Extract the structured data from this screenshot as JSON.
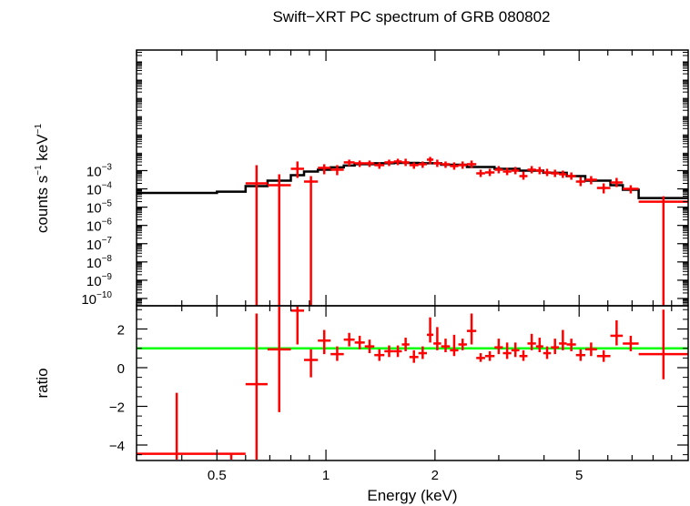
{
  "chart_data": [
    {
      "panel": "spectrum",
      "type": "scatter",
      "title": "Swift−XRT PC spectrum of GRB 080802",
      "xlabel": "Energy (keV)",
      "ylabel_parts": [
        "counts s",
        "−1",
        " keV",
        "−1"
      ],
      "xscale": "log",
      "yscale": "log",
      "xlim": [
        0.3,
        10
      ],
      "ylim_log10": [
        -10.4,
        3.6
      ],
      "y_ticks": [
        {
          "exp": -3,
          "label": "10",
          "sup": "−3"
        },
        {
          "exp": -4,
          "label": "10",
          "sup": "−4"
        },
        {
          "exp": -5,
          "label": "10",
          "sup": "−5"
        },
        {
          "exp": -6,
          "label": "10",
          "sup": "−6"
        },
        {
          "exp": -7,
          "label": "10",
          "sup": "−7"
        },
        {
          "exp": -8,
          "label": "10",
          "sup": "−8"
        },
        {
          "exp": -9,
          "label": "10",
          "sup": "−9"
        },
        {
          "exp": -10,
          "label": "10",
          "sup": "−10"
        }
      ],
      "series": [
        {
          "name": "data",
          "color": "#ff0000",
          "points": [
            {
              "x1": 0.6,
              "x2": 0.69,
              "y": -3.7,
              "ylo": -10.4,
              "yhi": -2.7
            },
            {
              "x1": 0.69,
              "x2": 0.8,
              "y": -3.8,
              "ylo": -10.4,
              "yhi": -3.2
            },
            {
              "x1": 0.8,
              "x2": 0.87,
              "y": -2.9,
              "ylo": -3.4,
              "yhi": -2.5
            },
            {
              "x1": 0.87,
              "x2": 0.95,
              "y": -3.6,
              "ylo": -10.4,
              "yhi": -3.3
            },
            {
              "x1": 0.95,
              "x2": 1.03,
              "y": -2.85,
              "ylo": -3.2,
              "yhi": -2.65
            },
            {
              "x1": 1.03,
              "x2": 1.12,
              "y": -2.95,
              "ylo": -3.25,
              "yhi": -2.7
            },
            {
              "x1": 1.12,
              "x2": 1.2,
              "y": -2.55,
              "ylo": -2.75,
              "yhi": -2.4
            },
            {
              "x1": 1.2,
              "x2": 1.28,
              "y": -2.6,
              "ylo": -2.8,
              "yhi": -2.45
            },
            {
              "x1": 1.28,
              "x2": 1.36,
              "y": -2.6,
              "ylo": -2.8,
              "yhi": -2.45
            },
            {
              "x1": 1.36,
              "x2": 1.45,
              "y": -2.7,
              "ylo": -2.9,
              "yhi": -2.55
            },
            {
              "x1": 1.45,
              "x2": 1.54,
              "y": -2.55,
              "ylo": -2.75,
              "yhi": -2.4
            },
            {
              "x1": 1.54,
              "x2": 1.62,
              "y": -2.5,
              "ylo": -2.7,
              "yhi": -2.35
            },
            {
              "x1": 1.62,
              "x2": 1.7,
              "y": -2.55,
              "ylo": -2.75,
              "yhi": -2.35
            },
            {
              "x1": 1.7,
              "x2": 1.8,
              "y": -2.7,
              "ylo": -2.9,
              "yhi": -2.55
            },
            {
              "x1": 1.8,
              "x2": 1.9,
              "y": -2.65,
              "ylo": -2.85,
              "yhi": -2.5
            },
            {
              "x1": 1.9,
              "x2": 1.98,
              "y": -2.4,
              "ylo": -2.65,
              "yhi": -2.25
            },
            {
              "x1": 1.98,
              "x2": 2.08,
              "y": -2.6,
              "ylo": -2.8,
              "yhi": -2.4
            },
            {
              "x1": 2.08,
              "x2": 2.2,
              "y": -2.65,
              "ylo": -2.85,
              "yhi": -2.5
            },
            {
              "x1": 2.2,
              "x2": 2.32,
              "y": -2.75,
              "ylo": -2.95,
              "yhi": -2.55
            },
            {
              "x1": 2.32,
              "x2": 2.45,
              "y": -2.7,
              "ylo": -2.9,
              "yhi": -2.5
            },
            {
              "x1": 2.45,
              "x2": 2.6,
              "y": -2.65,
              "ylo": -2.85,
              "yhi": -2.45
            },
            {
              "x1": 2.6,
              "x2": 2.75,
              "y": -3.15,
              "ylo": -3.35,
              "yhi": -2.95
            },
            {
              "x1": 2.75,
              "x2": 2.92,
              "y": -3.1,
              "ylo": -3.3,
              "yhi": -2.9
            },
            {
              "x1": 2.92,
              "x2": 3.08,
              "y": -2.95,
              "ylo": -3.15,
              "yhi": -2.75
            },
            {
              "x1": 3.08,
              "x2": 3.25,
              "y": -3.05,
              "ylo": -3.25,
              "yhi": -2.85
            },
            {
              "x1": 3.25,
              "x2": 3.42,
              "y": -3.0,
              "ylo": -3.2,
              "yhi": -2.8
            },
            {
              "x1": 3.42,
              "x2": 3.6,
              "y": -3.3,
              "ylo": -3.5,
              "yhi": -3.05
            },
            {
              "x1": 3.6,
              "x2": 3.8,
              "y": -2.95,
              "ylo": -3.15,
              "yhi": -2.75
            },
            {
              "x1": 3.8,
              "x2": 3.98,
              "y": -3.0,
              "ylo": -3.2,
              "yhi": -2.8
            },
            {
              "x1": 3.98,
              "x2": 4.18,
              "y": -3.1,
              "ylo": -3.3,
              "yhi": -2.9
            },
            {
              "x1": 4.18,
              "x2": 4.4,
              "y": -3.15,
              "ylo": -3.35,
              "yhi": -2.95
            },
            {
              "x1": 4.4,
              "x2": 4.62,
              "y": -3.2,
              "ylo": -3.4,
              "yhi": -3.0
            },
            {
              "x1": 4.62,
              "x2": 4.9,
              "y": -3.3,
              "ylo": -3.5,
              "yhi": -3.1
            },
            {
              "x1": 4.9,
              "x2": 5.2,
              "y": -3.6,
              "ylo": -3.85,
              "yhi": -3.35
            },
            {
              "x1": 5.2,
              "x2": 5.6,
              "y": -3.5,
              "ylo": -3.75,
              "yhi": -3.3
            },
            {
              "x1": 5.6,
              "x2": 6.1,
              "y": -3.95,
              "ylo": -4.25,
              "yhi": -3.7
            },
            {
              "x1": 6.1,
              "x2": 6.6,
              "y": -3.65,
              "ylo": -3.9,
              "yhi": -3.4
            },
            {
              "x1": 6.6,
              "x2": 7.3,
              "y": -4.0,
              "ylo": -4.25,
              "yhi": -3.8
            },
            {
              "x1": 7.3,
              "x2": 10.0,
              "y": -4.7,
              "ylo": -10.4,
              "yhi": -4.4
            }
          ]
        },
        {
          "name": "model",
          "color": "#000000",
          "steps": [
            {
              "x1": 0.3,
              "x2": 0.5,
              "y": -4.22
            },
            {
              "x1": 0.5,
              "x2": 0.6,
              "y": -4.15
            },
            {
              "x1": 0.6,
              "x2": 0.69,
              "y": -3.85
            },
            {
              "x1": 0.69,
              "x2": 0.8,
              "y": -3.55
            },
            {
              "x1": 0.8,
              "x2": 0.87,
              "y": -3.25
            },
            {
              "x1": 0.87,
              "x2": 0.95,
              "y": -3.05
            },
            {
              "x1": 0.95,
              "x2": 1.03,
              "y": -2.95
            },
            {
              "x1": 1.03,
              "x2": 1.12,
              "y": -2.82
            },
            {
              "x1": 1.12,
              "x2": 1.2,
              "y": -2.72
            },
            {
              "x1": 1.2,
              "x2": 1.36,
              "y": -2.65
            },
            {
              "x1": 1.36,
              "x2": 1.54,
              "y": -2.6
            },
            {
              "x1": 1.54,
              "x2": 1.8,
              "y": -2.58
            },
            {
              "x1": 1.8,
              "x2": 2.08,
              "y": -2.6
            },
            {
              "x1": 2.08,
              "x2": 2.45,
              "y": -2.68
            },
            {
              "x1": 2.45,
              "x2": 2.92,
              "y": -2.8
            },
            {
              "x1": 2.92,
              "x2": 3.42,
              "y": -2.9
            },
            {
              "x1": 3.42,
              "x2": 3.98,
              "y": -3.0
            },
            {
              "x1": 3.98,
              "x2": 4.62,
              "y": -3.12
            },
            {
              "x1": 4.62,
              "x2": 5.2,
              "y": -3.3
            },
            {
              "x1": 5.2,
              "x2": 6.1,
              "y": -3.55
            },
            {
              "x1": 6.1,
              "x2": 6.6,
              "y": -3.8
            },
            {
              "x1": 6.6,
              "x2": 7.3,
              "y": -4.05
            },
            {
              "x1": 7.3,
              "x2": 10.0,
              "y": -4.5
            }
          ]
        }
      ]
    },
    {
      "panel": "ratio",
      "type": "scatter",
      "xlabel": "Energy (keV)",
      "ylabel": "ratio",
      "xscale": "log",
      "xlim": [
        0.3,
        10
      ],
      "ylim": [
        -4.8,
        3.2
      ],
      "x_ticks": [
        {
          "value": 0.5,
          "label": "0.5"
        },
        {
          "value": 1,
          "label": "1"
        },
        {
          "value": 2,
          "label": "2"
        },
        {
          "value": 5,
          "label": "5"
        }
      ],
      "y_ticks": [
        {
          "value": 2,
          "label": "2"
        },
        {
          "value": 0,
          "label": "0"
        },
        {
          "value": -2,
          "label": "−2"
        },
        {
          "value": -4,
          "label": "−4"
        }
      ],
      "reference_line": {
        "value": 1,
        "color": "#00ff00"
      },
      "series": [
        {
          "name": "ratio",
          "color": "#ff0000",
          "points": [
            {
              "x1": 0.3,
              "x2": 0.5,
              "y": -4.45,
              "ylo": -4.8,
              "yhi": -1.3
            },
            {
              "x1": 0.5,
              "x2": 0.6,
              "y": -4.45,
              "ylo": -4.8,
              "yhi": -4.45
            },
            {
              "x1": 0.6,
              "x2": 0.69,
              "y": -0.85,
              "ylo": -4.8,
              "yhi": 2.8
            },
            {
              "x1": 0.69,
              "x2": 0.8,
              "y": 0.95,
              "ylo": -2.3,
              "yhi": 3.2
            },
            {
              "x1": 0.8,
              "x2": 0.87,
              "y": 2.95,
              "ylo": 1.2,
              "yhi": 3.2
            },
            {
              "x1": 0.87,
              "x2": 0.95,
              "y": 0.4,
              "ylo": -0.5,
              "yhi": 0.95
            },
            {
              "x1": 0.95,
              "x2": 1.03,
              "y": 1.4,
              "ylo": 0.7,
              "yhi": 1.95
            },
            {
              "x1": 1.03,
              "x2": 1.12,
              "y": 0.7,
              "ylo": 0.35,
              "yhi": 1.1
            },
            {
              "x1": 1.12,
              "x2": 1.2,
              "y": 1.45,
              "ylo": 1.1,
              "yhi": 1.8
            },
            {
              "x1": 1.2,
              "x2": 1.28,
              "y": 1.3,
              "ylo": 0.95,
              "yhi": 1.65
            },
            {
              "x1": 1.28,
              "x2": 1.36,
              "y": 1.1,
              "ylo": 0.75,
              "yhi": 1.45
            },
            {
              "x1": 1.36,
              "x2": 1.45,
              "y": 0.65,
              "ylo": 0.35,
              "yhi": 0.95
            },
            {
              "x1": 1.45,
              "x2": 1.54,
              "y": 0.85,
              "ylo": 0.55,
              "yhi": 1.15
            },
            {
              "x1": 1.54,
              "x2": 1.62,
              "y": 0.85,
              "ylo": 0.55,
              "yhi": 1.15
            },
            {
              "x1": 1.62,
              "x2": 1.7,
              "y": 1.2,
              "ylo": 0.85,
              "yhi": 1.55
            },
            {
              "x1": 1.7,
              "x2": 1.8,
              "y": 0.55,
              "ylo": 0.25,
              "yhi": 0.9
            },
            {
              "x1": 1.8,
              "x2": 1.9,
              "y": 0.75,
              "ylo": 0.45,
              "yhi": 1.1
            },
            {
              "x1": 1.9,
              "x2": 1.98,
              "y": 1.7,
              "ylo": 1.3,
              "yhi": 2.6
            },
            {
              "x1": 1.98,
              "x2": 2.08,
              "y": 1.25,
              "ylo": 0.9,
              "yhi": 2.1
            },
            {
              "x1": 2.08,
              "x2": 2.2,
              "y": 1.1,
              "ylo": 0.8,
              "yhi": 1.5
            },
            {
              "x1": 2.2,
              "x2": 2.32,
              "y": 0.9,
              "ylo": 0.6,
              "yhi": 1.7
            },
            {
              "x1": 2.32,
              "x2": 2.45,
              "y": 1.2,
              "ylo": 0.9,
              "yhi": 1.5
            },
            {
              "x1": 2.45,
              "x2": 2.6,
              "y": 1.9,
              "ylo": 1.2,
              "yhi": 2.8
            },
            {
              "x1": 2.6,
              "x2": 2.75,
              "y": 0.5,
              "ylo": 0.3,
              "yhi": 0.75
            },
            {
              "x1": 2.75,
              "x2": 2.92,
              "y": 0.6,
              "ylo": 0.35,
              "yhi": 0.85
            },
            {
              "x1": 2.92,
              "x2": 3.08,
              "y": 1.05,
              "ylo": 0.7,
              "yhi": 1.5
            },
            {
              "x1": 3.08,
              "x2": 3.25,
              "y": 0.75,
              "ylo": 0.45,
              "yhi": 1.3
            },
            {
              "x1": 3.25,
              "x2": 3.42,
              "y": 0.9,
              "ylo": 0.55,
              "yhi": 1.3
            },
            {
              "x1": 3.42,
              "x2": 3.6,
              "y": 0.6,
              "ylo": 0.35,
              "yhi": 0.9
            },
            {
              "x1": 3.6,
              "x2": 3.8,
              "y": 1.25,
              "ylo": 0.9,
              "yhi": 1.75
            },
            {
              "x1": 3.8,
              "x2": 3.98,
              "y": 1.1,
              "ylo": 0.8,
              "yhi": 1.55
            },
            {
              "x1": 3.98,
              "x2": 4.18,
              "y": 0.75,
              "ylo": 0.45,
              "yhi": 1.1
            },
            {
              "x1": 4.18,
              "x2": 4.4,
              "y": 1.05,
              "ylo": 0.7,
              "yhi": 1.5
            },
            {
              "x1": 4.4,
              "x2": 4.62,
              "y": 1.25,
              "ylo": 0.9,
              "yhi": 1.95
            },
            {
              "x1": 4.62,
              "x2": 4.9,
              "y": 1.2,
              "ylo": 0.85,
              "yhi": 1.5
            },
            {
              "x1": 4.9,
              "x2": 5.2,
              "y": 0.65,
              "ylo": 0.35,
              "yhi": 0.95
            },
            {
              "x1": 5.2,
              "x2": 5.6,
              "y": 0.95,
              "ylo": 0.6,
              "yhi": 1.3
            },
            {
              "x1": 5.6,
              "x2": 6.1,
              "y": 0.6,
              "ylo": 0.3,
              "yhi": 0.9
            },
            {
              "x1": 6.1,
              "x2": 6.6,
              "y": 1.65,
              "ylo": 1.15,
              "yhi": 2.45
            },
            {
              "x1": 6.6,
              "x2": 7.3,
              "y": 1.25,
              "ylo": 0.85,
              "yhi": 1.65
            },
            {
              "x1": 7.3,
              "x2": 10.0,
              "y": 0.7,
              "ylo": -0.6,
              "yhi": 3.0
            }
          ]
        }
      ]
    }
  ]
}
